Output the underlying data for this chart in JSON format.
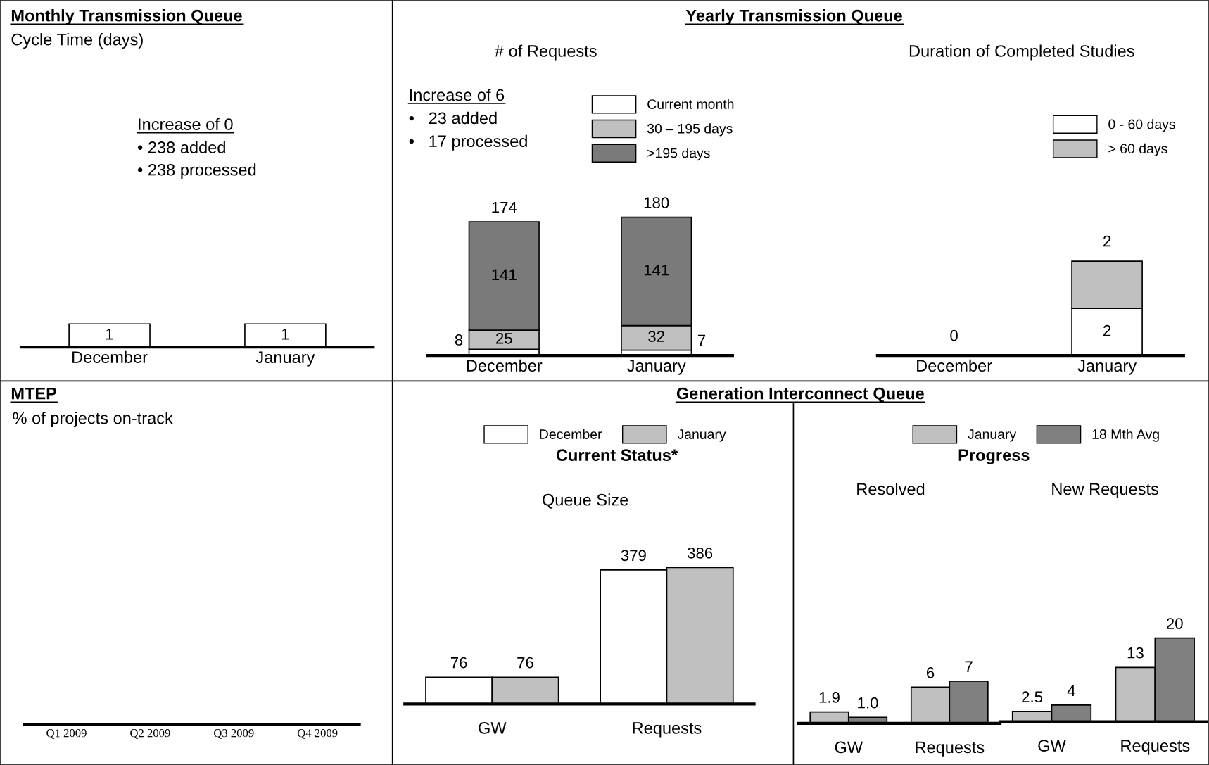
{
  "chart_data": [
    {
      "type": "bar",
      "title": "Monthly Transmission Queue",
      "subtitle": "Cycle Time (days)",
      "categories": [
        "December",
        "January"
      ],
      "series": [
        {
          "color": "#ffffff",
          "values": [
            1,
            1
          ]
        }
      ],
      "data_labels": true,
      "annotations": [
        "Increase of 0",
        "• 238 added",
        "• 238 processed"
      ]
    },
    {
      "type": "bar",
      "title": "Yearly Transmission Queue",
      "subtitle": "# of Requests",
      "categories": [
        "December",
        "January"
      ],
      "stacked": true,
      "data_labels": true,
      "totals": [
        "174",
        "180"
      ],
      "legend": "top",
      "series": [
        {
          "name": "Current month",
          "color": "#ffffff",
          "values": [
            8,
            7
          ]
        },
        {
          "name": "30 – 195 days",
          "color": "#c0c0c0",
          "values": [
            25,
            32
          ]
        },
        {
          "name": ">195 days",
          "color": "#7a7a7a",
          "values": [
            141,
            141
          ]
        }
      ],
      "annotations": [
        "Increase of 6",
        "•   23 added",
        "•   17 processed"
      ]
    },
    {
      "type": "bar",
      "subtitle": "Duration of Completed Studies",
      "categories": [
        "December",
        "January"
      ],
      "stacked": true,
      "legend": "top",
      "series": [
        {
          "name": "0 - 60 days",
          "color": "#ffffff",
          "values": [
            0,
            2
          ],
          "value_labels": [
            null,
            "2"
          ]
        },
        {
          "name": "> 60 days",
          "color": "#c0c0c0",
          "values": [
            0,
            2
          ],
          "value_labels": [
            "0",
            "2"
          ]
        }
      ]
    },
    {
      "type": "other",
      "title": "MTEP",
      "subtitle": "% of projects on-track",
      "categories": [
        "Q1 2009",
        "Q2 2009",
        "Q3 2009",
        "Q4 2009"
      ]
    },
    {
      "type": "bar",
      "title": "Generation Interconnect Queue",
      "subtitle": "Current Status*",
      "categories": [
        "GW",
        "Requests"
      ],
      "data_labels": true,
      "legend": "top",
      "series": [
        {
          "name": "December",
          "color": "#ffffff",
          "values": [
            76,
            379
          ]
        },
        {
          "name": "January",
          "color": "#c0c0c0",
          "values": [
            76,
            386
          ]
        }
      ],
      "annotations": [
        "Queue Size"
      ]
    },
    {
      "type": "bar",
      "subtitle": "Progress",
      "categories": [
        "GW",
        "Requests"
      ],
      "legend": "top",
      "series": [
        {
          "name": "January",
          "color": "#c0c0c0",
          "values": [
            1.9,
            6
          ],
          "value_labels": [
            "1.9",
            "6"
          ]
        },
        {
          "name": "18 Mth Avg",
          "color": "#808080",
          "values": [
            1.0,
            7
          ],
          "value_labels": [
            "1.0",
            "7"
          ]
        }
      ],
      "annotations": [
        "Resolved"
      ]
    },
    {
      "type": "bar",
      "categories": [
        "GW",
        "Requests"
      ],
      "data_labels": true,
      "series": [
        {
          "color": "#c0c0c0",
          "values": [
            2.5,
            13
          ]
        },
        {
          "color": "#808080",
          "values": [
            4,
            20
          ]
        }
      ],
      "annotations": [
        "New Requests"
      ]
    }
  ]
}
